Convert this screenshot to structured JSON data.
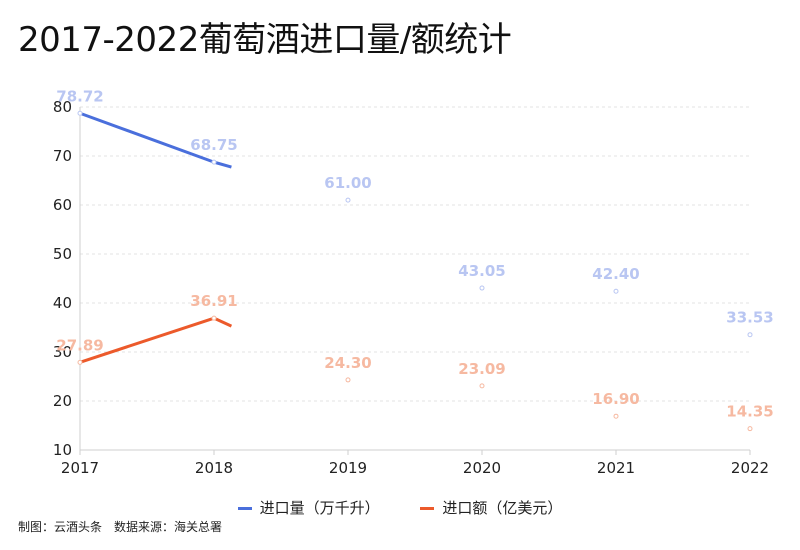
{
  "title": "2017-2022葡萄酒进口量/额统计",
  "footer": "制图：云酒头条　数据来源：海关总署",
  "chart_data": {
    "type": "line",
    "categories": [
      "2017",
      "2018",
      "2019",
      "2020",
      "2021",
      "2022"
    ],
    "ylim": [
      10,
      80
    ],
    "yticks": [
      10,
      20,
      30,
      40,
      50,
      60,
      70,
      80
    ],
    "grid": true,
    "legend_position": "bottom",
    "series": [
      {
        "name": "进口量（万千升）",
        "color": "#4a6fdc",
        "label_color": "#b9c6f2",
        "values": [
          78.72,
          68.75,
          61.0,
          43.05,
          42.4,
          33.53
        ],
        "labels": [
          "78.72",
          "68.75",
          "61.00",
          "43.05",
          "42.40",
          "33.53"
        ]
      },
      {
        "name": "进口额（亿美元）",
        "color": "#ec5a2b",
        "label_color": "#f6b9a1",
        "values": [
          27.89,
          36.91,
          24.3,
          23.09,
          16.9,
          14.35
        ],
        "labels": [
          "27.89",
          "36.91",
          "24.30",
          "23.09",
          "16.90",
          "14.35"
        ]
      }
    ]
  }
}
